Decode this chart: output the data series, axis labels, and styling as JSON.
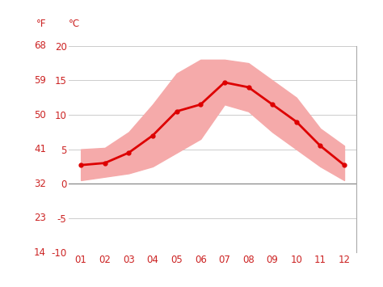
{
  "months": [
    1,
    2,
    3,
    4,
    5,
    6,
    7,
    8,
    9,
    10,
    11,
    12
  ],
  "month_labels": [
    "01",
    "02",
    "03",
    "04",
    "05",
    "06",
    "07",
    "08",
    "09",
    "10",
    "11",
    "12"
  ],
  "mean_temp_c": [
    2.7,
    3.0,
    4.5,
    7.0,
    10.5,
    11.5,
    14.7,
    14.0,
    11.5,
    9.0,
    5.5,
    2.7
  ],
  "max_temp_c": [
    5.0,
    5.2,
    7.5,
    11.5,
    16.0,
    18.0,
    18.0,
    17.5,
    15.0,
    12.5,
    8.0,
    5.5
  ],
  "min_temp_c": [
    0.5,
    1.0,
    1.5,
    2.5,
    4.5,
    6.5,
    11.5,
    10.5,
    7.5,
    5.0,
    2.5,
    0.5
  ],
  "mean_color": "#dd0000",
  "band_color": "#f5aaaa",
  "zero_line_color": "#888888",
  "background_color": "#ffffff",
  "grid_color": "#cccccc",
  "label_color": "#cc2222",
  "ylim_c": [
    -10,
    20
  ],
  "yticks_c": [
    -10,
    -5,
    0,
    5,
    10,
    15,
    20
  ],
  "yticks_f": [
    14,
    23,
    32,
    41,
    50,
    59,
    68
  ],
  "tick_fontsize": 8.5
}
